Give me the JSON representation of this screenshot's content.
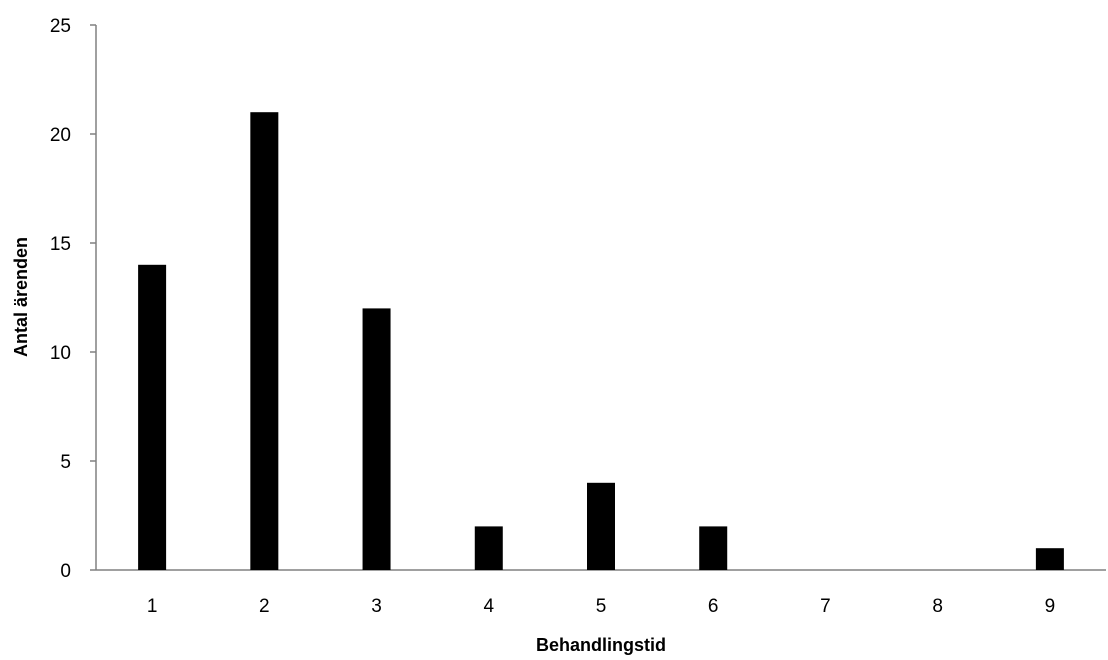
{
  "chart_data": {
    "type": "bar",
    "categories": [
      "1",
      "2",
      "3",
      "4",
      "5",
      "6",
      "7",
      "8",
      "9"
    ],
    "values": [
      14,
      21,
      12,
      2,
      4,
      2,
      0,
      0,
      1
    ],
    "xlabel": "Behandlingstid",
    "ylabel": "Antal ärenden",
    "ylim": [
      0,
      25
    ],
    "yticks": [
      0,
      5,
      10,
      15,
      20,
      25
    ],
    "grid": false,
    "bar_color": "#000000",
    "axis_color": "#808080"
  }
}
